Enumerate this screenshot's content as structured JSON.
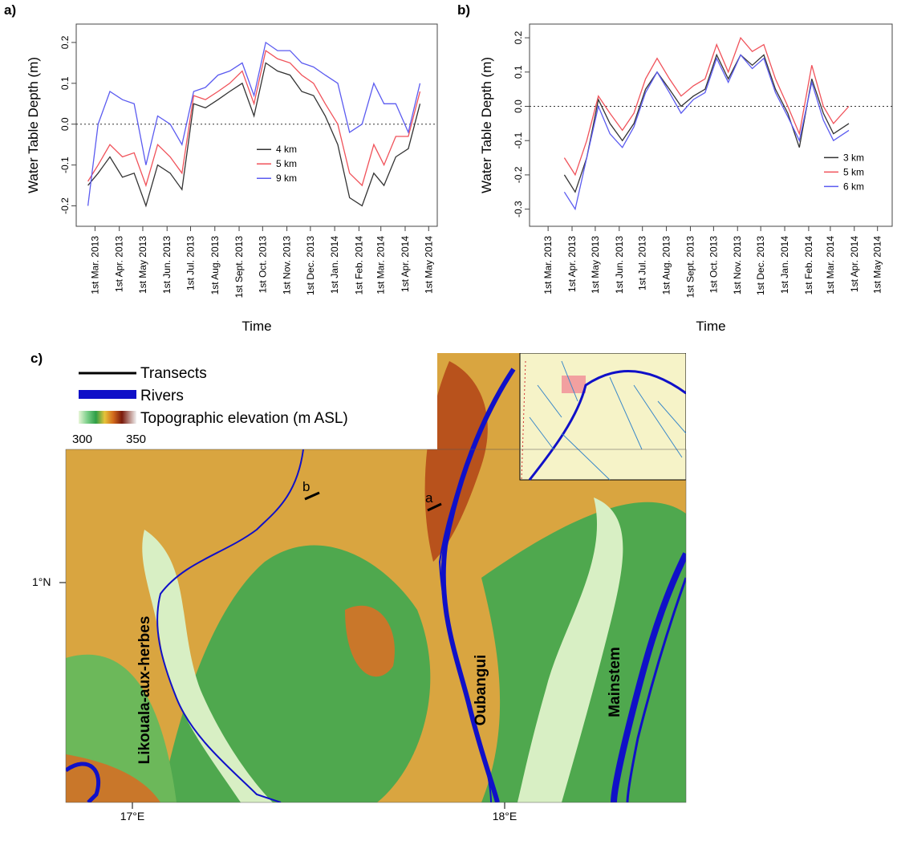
{
  "chart_data": [
    {
      "type": "line",
      "panel_label": "a)",
      "y_label": "Water Table Depth (m)",
      "x_label": "Time",
      "x": [
        "2013-02-20",
        "2013-03-05",
        "2013-03-20",
        "2013-04-05",
        "2013-04-20",
        "2013-05-05",
        "2013-05-20",
        "2013-06-05",
        "2013-06-20",
        "2013-07-05",
        "2013-07-20",
        "2013-08-05",
        "2013-08-20",
        "2013-09-05",
        "2013-09-20",
        "2013-10-05",
        "2013-10-20",
        "2013-11-05",
        "2013-11-20",
        "2013-12-05",
        "2013-12-20",
        "2014-01-05",
        "2014-01-20",
        "2014-02-05",
        "2014-02-20",
        "2014-03-05",
        "2014-03-20",
        "2014-04-05",
        "2014-04-20"
      ],
      "series": [
        {
          "name": "4 km",
          "color": "#333333",
          "values": [
            -0.15,
            -0.12,
            -0.08,
            -0.13,
            -0.12,
            -0.2,
            -0.1,
            -0.12,
            -0.16,
            0.05,
            0.04,
            0.06,
            0.08,
            0.1,
            0.02,
            0.15,
            0.13,
            0.12,
            0.08,
            0.07,
            0.02,
            -0.05,
            -0.18,
            -0.2,
            -0.12,
            -0.15,
            -0.08,
            -0.06,
            0.05
          ]
        },
        {
          "name": "5 km",
          "color": "#f0525a",
          "values": [
            -0.14,
            -0.1,
            -0.05,
            -0.08,
            -0.07,
            -0.15,
            -0.05,
            -0.08,
            -0.12,
            0.07,
            0.06,
            0.08,
            0.1,
            0.13,
            0.05,
            0.18,
            0.16,
            0.15,
            0.12,
            0.1,
            0.05,
            0.0,
            -0.12,
            -0.15,
            -0.05,
            -0.1,
            -0.03,
            -0.03,
            0.08
          ]
        },
        {
          "name": "9 km",
          "color": "#5b5bf0",
          "values": [
            -0.2,
            0.0,
            0.08,
            0.06,
            0.05,
            -0.1,
            0.02,
            0.0,
            -0.05,
            0.08,
            0.09,
            0.12,
            0.13,
            0.15,
            0.07,
            0.2,
            0.18,
            0.18,
            0.15,
            0.14,
            0.12,
            0.1,
            -0.02,
            0.0,
            0.1,
            0.05,
            0.05,
            -0.02,
            0.1
          ]
        }
      ],
      "xlim": [
        "2013-02-05",
        "2014-05-12"
      ],
      "xticks": [
        {
          "value": "2013-03-01",
          "label": "1st Mar. 2013"
        },
        {
          "value": "2013-04-01",
          "label": "1st Apr. 2013"
        },
        {
          "value": "2013-05-01",
          "label": "1st May 2013"
        },
        {
          "value": "2013-06-01",
          "label": "1st Jun. 2013"
        },
        {
          "value": "2013-07-01",
          "label": "1st Jul. 2013"
        },
        {
          "value": "2013-08-01",
          "label": "1st Aug. 2013"
        },
        {
          "value": "2013-09-01",
          "label": "1st Sept. 2013"
        },
        {
          "value": "2013-10-01",
          "label": "1st Oct. 2013"
        },
        {
          "value": "2013-11-01",
          "label": "1st Nov. 2013"
        },
        {
          "value": "2013-12-01",
          "label": "1st Dec. 2013"
        },
        {
          "value": "2014-01-01",
          "label": "1st Jan. 2014"
        },
        {
          "value": "2014-02-01",
          "label": "1st Feb. 2014"
        },
        {
          "value": "2014-03-01",
          "label": "1st Mar. 2014"
        },
        {
          "value": "2014-04-01",
          "label": "1st Apr. 2014"
        },
        {
          "value": "2014-05-01",
          "label": "1st May 2014"
        }
      ],
      "ylim": [
        -0.25,
        0.245
      ],
      "yticks": [
        -0.2,
        -0.1,
        {
          "value": 0,
          "label": "0.0"
        },
        0.1,
        0.2
      ],
      "hline": 0,
      "legend": "lower center"
    },
    {
      "type": "line",
      "panel_label": "b)",
      "y_label": "Water Table Depth (m)",
      "x_label": "Time",
      "x": [
        "2013-03-22",
        "2013-04-05",
        "2013-04-20",
        "2013-05-05",
        "2013-05-20",
        "2013-06-05",
        "2013-06-20",
        "2013-07-05",
        "2013-07-20",
        "2013-08-05",
        "2013-08-20",
        "2013-09-05",
        "2013-09-20",
        "2013-10-05",
        "2013-10-20",
        "2013-11-05",
        "2013-11-20",
        "2013-12-05",
        "2013-12-20",
        "2014-01-05",
        "2014-01-20",
        "2014-02-05",
        "2014-02-20",
        "2014-03-05",
        "2014-03-25"
      ],
      "series": [
        {
          "name": "3 km",
          "color": "#333333",
          "values": [
            -0.2,
            -0.25,
            -0.15,
            0.02,
            -0.05,
            -0.1,
            -0.05,
            0.05,
            0.1,
            0.05,
            0.0,
            0.03,
            0.05,
            0.15,
            0.08,
            0.15,
            0.12,
            0.15,
            0.05,
            -0.02,
            -0.12,
            0.08,
            -0.02,
            -0.08,
            -0.05
          ]
        },
        {
          "name": "5 km",
          "color": "#f0525a",
          "values": [
            -0.15,
            -0.2,
            -0.1,
            0.03,
            -0.02,
            -0.07,
            -0.02,
            0.08,
            0.14,
            0.08,
            0.03,
            0.06,
            0.08,
            0.18,
            0.1,
            0.2,
            0.16,
            0.18,
            0.08,
            0.0,
            -0.08,
            0.12,
            0.0,
            -0.05,
            0.0
          ]
        },
        {
          "name": "6 km",
          "color": "#5b5bf0",
          "values": [
            -0.25,
            -0.3,
            -0.15,
            0.0,
            -0.08,
            -0.12,
            -0.06,
            0.04,
            0.1,
            0.04,
            -0.02,
            0.02,
            0.04,
            0.14,
            0.07,
            0.15,
            0.11,
            0.14,
            0.04,
            -0.03,
            -0.1,
            0.07,
            -0.04,
            -0.1,
            -0.07
          ]
        }
      ],
      "xlim": [
        "2013-02-05",
        "2014-05-20"
      ],
      "xticks": [
        {
          "value": "2013-03-01",
          "label": "1st Mar. 2013"
        },
        {
          "value": "2013-04-01",
          "label": "1st Apr. 2013"
        },
        {
          "value": "2013-05-01",
          "label": "1st May 2013"
        },
        {
          "value": "2013-06-01",
          "label": "1st Jun. 2013"
        },
        {
          "value": "2013-07-01",
          "label": "1st Jul. 2013"
        },
        {
          "value": "2013-08-01",
          "label": "1st Aug. 2013"
        },
        {
          "value": "2013-09-01",
          "label": "1st Sept. 2013"
        },
        {
          "value": "2013-10-01",
          "label": "1st Oct. 2013"
        },
        {
          "value": "2013-11-01",
          "label": "1st Nov. 2013"
        },
        {
          "value": "2013-12-01",
          "label": "1st Dec. 2013"
        },
        {
          "value": "2014-01-01",
          "label": "1st Jan. 2014"
        },
        {
          "value": "2014-02-01",
          "label": "1st Feb. 2014"
        },
        {
          "value": "2014-03-01",
          "label": "1st Mar. 2014"
        },
        {
          "value": "2014-04-01",
          "label": "1st Apr. 2014"
        },
        {
          "value": "2014-05-01",
          "label": "1st May 2014"
        }
      ],
      "ylim": [
        -0.35,
        0.24
      ],
      "yticks": [
        -0.3,
        -0.2,
        -0.1,
        {
          "value": 0,
          "label": "0.0"
        },
        0.1,
        0.2
      ],
      "hline": 0,
      "legend": "lower right"
    }
  ],
  "map": {
    "panel_label": "c)",
    "legend": [
      "Transects",
      "Rivers",
      "Topographic elevation (m ASL)"
    ],
    "colorbar_ticks": [
      "300",
      "350"
    ],
    "transects": [
      "b",
      "a"
    ],
    "rivers": [
      "Likouala-aux-herbes",
      "Oubangui",
      "Mainstem"
    ],
    "lat_labels": [
      "1°N"
    ],
    "lon_labels": [
      "17°E",
      "18°E"
    ]
  }
}
